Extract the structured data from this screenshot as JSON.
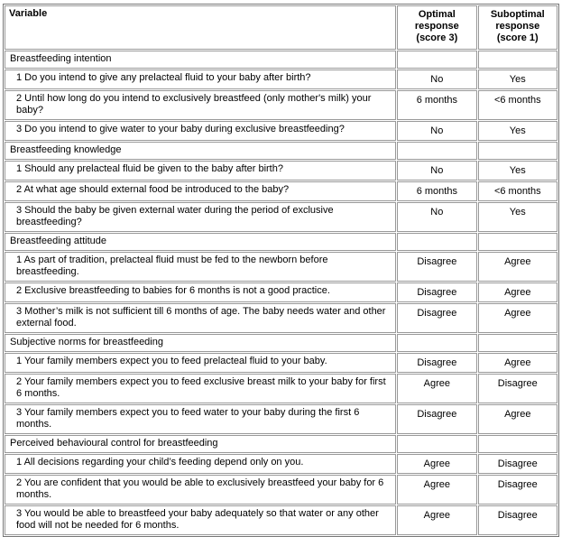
{
  "table": {
    "header": [
      "Variable",
      "Optimal response (score 3)",
      "Suboptimal response (score 1)"
    ],
    "sections": [
      {
        "title": "Breastfeeding intention",
        "rows": [
          [
            "1 Do you intend to give any prelacteal fluid to your baby after birth?",
            "No",
            "Yes"
          ],
          [
            "2 Until how long do you intend to exclusively breastfeed (only mother's milk) your baby?",
            "6 months",
            "<6 months"
          ],
          [
            "3 Do you intend to give water to your baby during exclusive breastfeeding?",
            "No",
            "Yes"
          ]
        ]
      },
      {
        "title": "Breastfeeding knowledge",
        "rows": [
          [
            "1 Should any prelacteal fluid be given to the baby after birth?",
            "No",
            "Yes"
          ],
          [
            "2 At what age should external food be introduced to the baby?",
            "6 months",
            "<6 months"
          ],
          [
            "3 Should the baby be given external water during the period of exclusive breastfeeding?",
            "No",
            "Yes"
          ]
        ]
      },
      {
        "title": "Breastfeeding attitude",
        "rows": [
          [
            "1 As part of tradition, prelacteal fluid must be fed to the newborn before breastfeeding.",
            "Disagree",
            "Agree"
          ],
          [
            "2 Exclusive breastfeeding to babies for 6 months is not a good practice.",
            "Disagree",
            "Agree"
          ],
          [
            "3 Mother’s milk is not sufficient till 6 months of age. The baby needs water and other external food.",
            "Disagree",
            "Agree"
          ]
        ]
      },
      {
        "title": "Subjective norms for breastfeeding",
        "rows": [
          [
            "1 Your family members expect you to feed prelacteal fluid to your baby.",
            "Disagree",
            "Agree"
          ],
          [
            "2 Your family members expect you to feed exclusive breast milk to your baby for first 6 months.",
            "Agree",
            "Disagree"
          ],
          [
            "3 Your family members expect you to feed water to your baby during the first 6 months.",
            "Disagree",
            "Agree"
          ]
        ]
      },
      {
        "title": "Perceived behavioural control for breastfeeding",
        "rows": [
          [
            "1 All decisions regarding your child’s feeding depend only on you.",
            "Agree",
            "Disagree"
          ],
          [
            "2 You are confident that you would be able to exclusively breastfeed your baby for 6 months.",
            "Agree",
            "Disagree"
          ],
          [
            "3 You would be able to breastfeed your baby adequately so that water or any other food will not be needed for 6 months.",
            "Agree",
            "Disagree"
          ]
        ]
      }
    ]
  }
}
